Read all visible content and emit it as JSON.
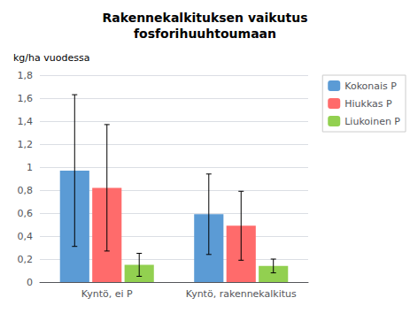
{
  "chart_data": {
    "type": "bar",
    "title": "Rakennekalkituksen vaikutus\nfosforihuuhtoumaan",
    "ylabel": "kg/ha vuodessa",
    "categories": [
      "Kyntö, ei P",
      "Kyntö, rakennekalkitus"
    ],
    "series": [
      {
        "name": "Kokonais P",
        "color": "#5B9BD5",
        "values": [
          0.97,
          0.59
        ],
        "errors": [
          0.66,
          0.35
        ]
      },
      {
        "name": "Hiukkas P",
        "color": "#FF6B6B",
        "values": [
          0.82,
          0.49
        ],
        "errors": [
          0.55,
          0.3
        ]
      },
      {
        "name": "Liukoinen P",
        "color": "#92D050",
        "values": [
          0.15,
          0.14
        ],
        "errors": [
          0.1,
          0.06
        ]
      }
    ],
    "ylim": [
      0,
      1.8
    ],
    "yticks": [
      0,
      {
        "value": 0.2,
        "label": "0,2"
      },
      {
        "value": 0.4,
        "label": "0,4"
      },
      {
        "value": 0.6,
        "label": "0,6"
      },
      {
        "value": 0.8,
        "label": "0,8"
      },
      1,
      {
        "value": 1.2,
        "label": "1,2"
      },
      {
        "value": 1.4,
        "label": "1,4"
      },
      {
        "value": 1.6,
        "label": "1,6"
      },
      {
        "value": 1.8,
        "label": "1,8"
      }
    ],
    "grid": true,
    "legend": "right"
  }
}
